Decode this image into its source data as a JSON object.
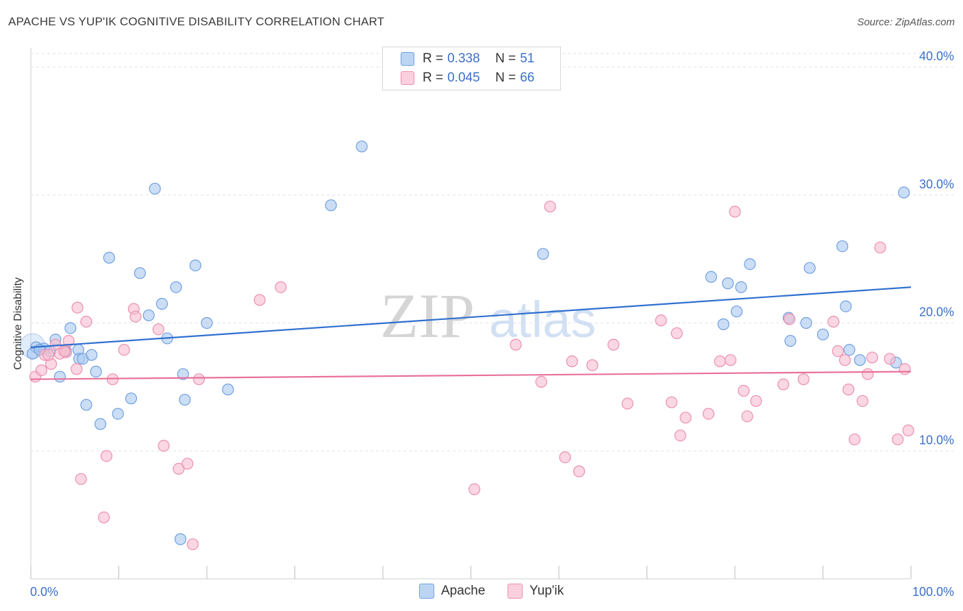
{
  "header": {
    "title": "APACHE VS YUP'IK COGNITIVE DISABILITY CORRELATION CHART",
    "source": "Source: ZipAtlas.com"
  },
  "watermark": {
    "zip": "ZIP",
    "atlas": "atlas"
  },
  "legend": {
    "apache": {
      "r_label": "R =",
      "r_value": "0.338",
      "n_label": "N =",
      "n_value": "51"
    },
    "yupik": {
      "r_label": "R =",
      "r_value": "0.045",
      "n_label": "N =",
      "n_value": "66"
    }
  },
  "colors": {
    "apache_fill": "#a9c8f0",
    "apache_stroke": "#6f9fe0",
    "apache_line": "#2f6fcf",
    "yupik_fill": "#f7bccf",
    "yupik_stroke": "#ec8fb0",
    "yupik_line": "#e8709a",
    "tick_label": "#3a6fc8"
  },
  "chart_data": {
    "type": "scatter",
    "title": "APACHE VS YUP'IK COGNITIVE DISABILITY CORRELATION CHART",
    "xlabel": "",
    "ylabel": "Cognitive Disability",
    "xlim": [
      0,
      100
    ],
    "ylim": [
      0,
      41.5
    ],
    "x_tick_labels": [
      "0.0%",
      "100.0%"
    ],
    "y_ticks": [
      10,
      20,
      30,
      40
    ],
    "y_tick_labels": [
      "10.0%",
      "20.0%",
      "30.0%",
      "40.0%"
    ],
    "grid": true,
    "series": [
      {
        "name": "Apache",
        "trend": [
          18.1,
          22.8
        ],
        "points": [
          [
            0.6,
            18.1
          ],
          [
            1.5,
            18.0
          ],
          [
            2.2,
            17.8
          ],
          [
            2.8,
            18.7
          ],
          [
            3.3,
            15.8
          ],
          [
            4.5,
            19.6
          ],
          [
            5.4,
            17.9
          ],
          [
            5.5,
            17.2
          ],
          [
            5.9,
            17.2
          ],
          [
            6.3,
            13.6
          ],
          [
            6.9,
            17.5
          ],
          [
            7.4,
            16.2
          ],
          [
            7.9,
            12.1
          ],
          [
            8.9,
            25.1
          ],
          [
            9.9,
            12.9
          ],
          [
            11.4,
            14.1
          ],
          [
            12.4,
            23.9
          ],
          [
            13.4,
            20.6
          ],
          [
            14.1,
            30.5
          ],
          [
            14.9,
            21.5
          ],
          [
            15.5,
            18.8
          ],
          [
            16.5,
            22.8
          ],
          [
            17.0,
            3.1
          ],
          [
            17.3,
            16.0
          ],
          [
            17.5,
            14.0
          ],
          [
            18.7,
            24.5
          ],
          [
            20.0,
            20.0
          ],
          [
            22.4,
            14.8
          ],
          [
            34.1,
            29.2
          ],
          [
            37.6,
            33.8
          ],
          [
            58.2,
            25.4
          ],
          [
            77.3,
            23.6
          ],
          [
            78.7,
            19.9
          ],
          [
            79.2,
            23.1
          ],
          [
            80.2,
            20.9
          ],
          [
            80.7,
            22.8
          ],
          [
            81.7,
            24.6
          ],
          [
            86.1,
            20.4
          ],
          [
            86.3,
            18.6
          ],
          [
            88.1,
            20.0
          ],
          [
            88.5,
            24.3
          ],
          [
            90.0,
            19.1
          ],
          [
            92.2,
            26.0
          ],
          [
            92.6,
            21.3
          ],
          [
            93.0,
            17.9
          ],
          [
            94.2,
            17.1
          ],
          [
            98.3,
            16.9
          ],
          [
            99.2,
            30.2
          ],
          [
            0.2,
            17.6
          ],
          [
            1.0,
            17.9
          ],
          [
            4.0,
            17.8
          ]
        ]
      },
      {
        "name": "Yup'ik",
        "trend": [
          15.6,
          16.2
        ],
        "points": [
          [
            0.5,
            15.8
          ],
          [
            1.2,
            16.3
          ],
          [
            1.6,
            17.5
          ],
          [
            2.3,
            16.8
          ],
          [
            2.8,
            18.3
          ],
          [
            3.3,
            17.6
          ],
          [
            4.0,
            17.7
          ],
          [
            4.3,
            18.6
          ],
          [
            5.2,
            16.4
          ],
          [
            5.3,
            21.2
          ],
          [
            5.7,
            7.8
          ],
          [
            6.3,
            20.1
          ],
          [
            8.3,
            4.8
          ],
          [
            8.6,
            9.6
          ],
          [
            9.3,
            15.6
          ],
          [
            10.6,
            17.9
          ],
          [
            11.7,
            21.1
          ],
          [
            11.9,
            20.5
          ],
          [
            14.5,
            19.5
          ],
          [
            15.1,
            10.4
          ],
          [
            16.8,
            8.6
          ],
          [
            17.8,
            9.0
          ],
          [
            18.4,
            2.7
          ],
          [
            19.1,
            15.6
          ],
          [
            26.0,
            21.8
          ],
          [
            28.4,
            22.8
          ],
          [
            50.4,
            7.0
          ],
          [
            55.1,
            18.3
          ],
          [
            58.0,
            15.4
          ],
          [
            59.0,
            29.1
          ],
          [
            60.7,
            9.5
          ],
          [
            61.5,
            17.0
          ],
          [
            62.3,
            8.4
          ],
          [
            63.8,
            16.7
          ],
          [
            66.2,
            18.3
          ],
          [
            67.8,
            13.7
          ],
          [
            71.6,
            20.2
          ],
          [
            72.8,
            13.8
          ],
          [
            73.4,
            19.2
          ],
          [
            73.8,
            11.2
          ],
          [
            74.4,
            12.6
          ],
          [
            77.0,
            12.9
          ],
          [
            78.3,
            17.0
          ],
          [
            79.5,
            17.1
          ],
          [
            80.0,
            28.7
          ],
          [
            81.0,
            14.7
          ],
          [
            81.4,
            12.7
          ],
          [
            82.4,
            13.9
          ],
          [
            85.5,
            15.2
          ],
          [
            86.2,
            20.3
          ],
          [
            87.8,
            15.6
          ],
          [
            91.2,
            20.1
          ],
          [
            91.7,
            17.8
          ],
          [
            92.5,
            17.1
          ],
          [
            92.9,
            14.8
          ],
          [
            93.6,
            10.9
          ],
          [
            94.5,
            13.9
          ],
          [
            95.1,
            16.0
          ],
          [
            95.6,
            17.3
          ],
          [
            96.5,
            25.9
          ],
          [
            97.6,
            17.2
          ],
          [
            98.5,
            10.9
          ],
          [
            99.3,
            16.4
          ],
          [
            99.7,
            11.6
          ],
          [
            2.0,
            17.5
          ],
          [
            3.8,
            17.8
          ]
        ]
      }
    ]
  }
}
